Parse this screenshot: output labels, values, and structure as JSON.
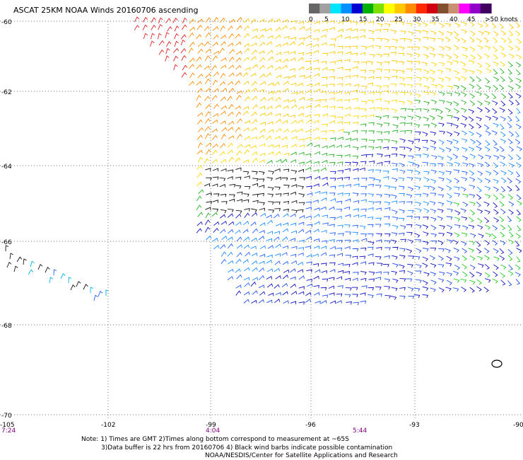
{
  "title": "ASCAT 25KM NOAA Winds 20160706 ascending",
  "legend": {
    "labels": [
      "0",
      "5",
      "10",
      "15",
      "20",
      "25",
      "30",
      "35",
      "40",
      "45",
      ">50 knots"
    ],
    "colors": [
      "#666666",
      "#a0a0a0",
      "#00e5ff",
      "#0090ff",
      "#0000d0",
      "#00b000",
      "#7ce000",
      "#ffff00",
      "#ffc800",
      "#ff8c00",
      "#ff2a00",
      "#d00010",
      "#805030",
      "#c89070",
      "#ff00ff",
      "#9000c8",
      "#400060"
    ]
  },
  "latitude_labels": [
    "-60",
    "-62",
    "-64",
    "-66",
    "-68",
    "-70"
  ],
  "longitude_labels": [
    "-105",
    "-102",
    "-99",
    "-96",
    "-93",
    "-90"
  ],
  "time_labels": [
    "7:24",
    "4:04",
    "5:44"
  ],
  "notes": {
    "line1": "Note: 1) Times are GMT 2)Times along bottom correspond to measurement at ~65S",
    "line2": "3)Data buffer is 22 hrs from 20160706 4) Black wind barbs indicate possible contamination",
    "line3": "NOAA/NESDIS/Center for Satellite Applications and Research"
  }
}
